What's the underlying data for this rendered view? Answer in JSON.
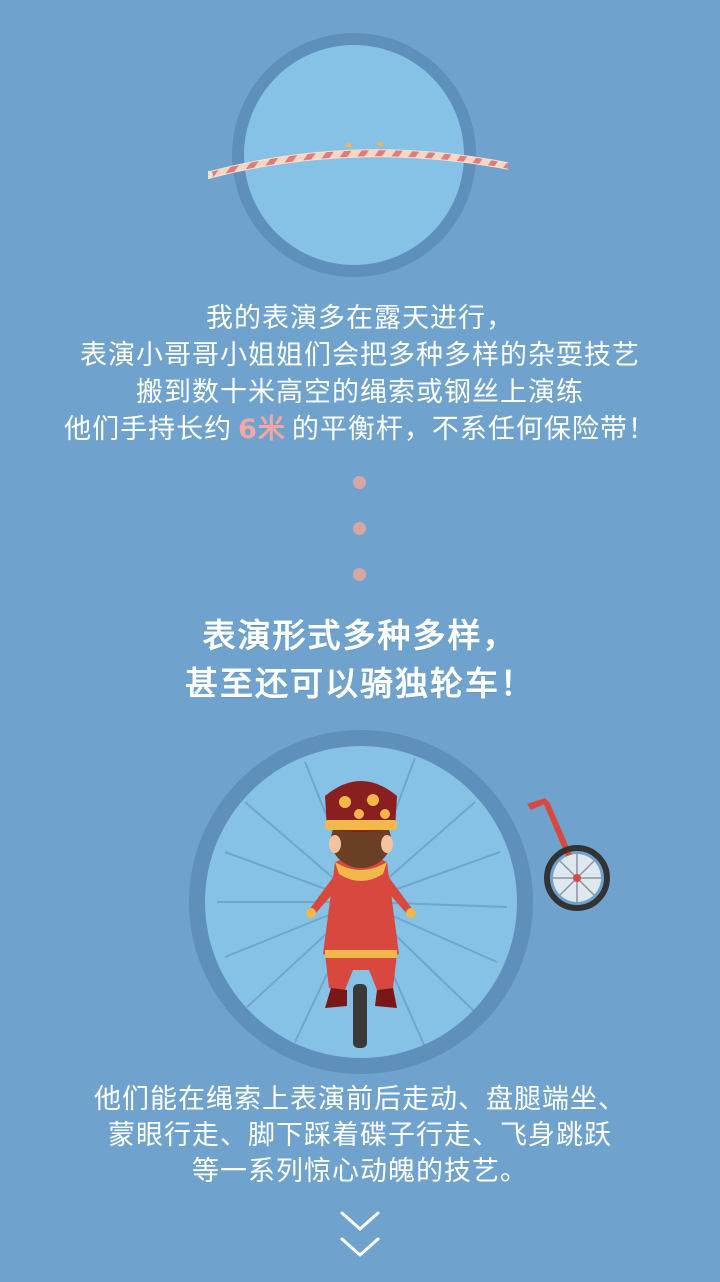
{
  "intro": {
    "line1": "我的表演多在露天进行，",
    "line2": "表演小哥哥小姐姐们会把多种多样的杂耍技艺",
    "line3": "搬到数十米高空的绳索或钢丝上演练",
    "line4_before": "他们手持长约",
    "line4_highlight": "6米",
    "line4_after": "的平衡杆，不系任何保险带！"
  },
  "headline": {
    "line1": "表演形式多种多样，",
    "line2": "甚至还可以骑独轮车！"
  },
  "bottom": {
    "line1": "他们能在绳索上表演前后走动、盘腿端坐、",
    "line2": "蒙眼行走、脚下踩着碟子行走、飞身跳跃",
    "line3": "等一系列惊心动魄的技艺。"
  },
  "icons": {
    "balance_pole": "balance-pole-icon",
    "unicycle": "unicycle-icon",
    "performer": "performer-icon",
    "scroll": "chevron-down-icon"
  },
  "colors": {
    "background": "#6fa3cd",
    "circle_fill": "#86c2e5",
    "circle_ring": "#5f8fbb",
    "highlight": "#f2a6a6",
    "dot": "#d8a6a2",
    "costume_red": "#d9483f",
    "hat_maroon": "#8a1f1f",
    "gold": "#f2b84b"
  }
}
